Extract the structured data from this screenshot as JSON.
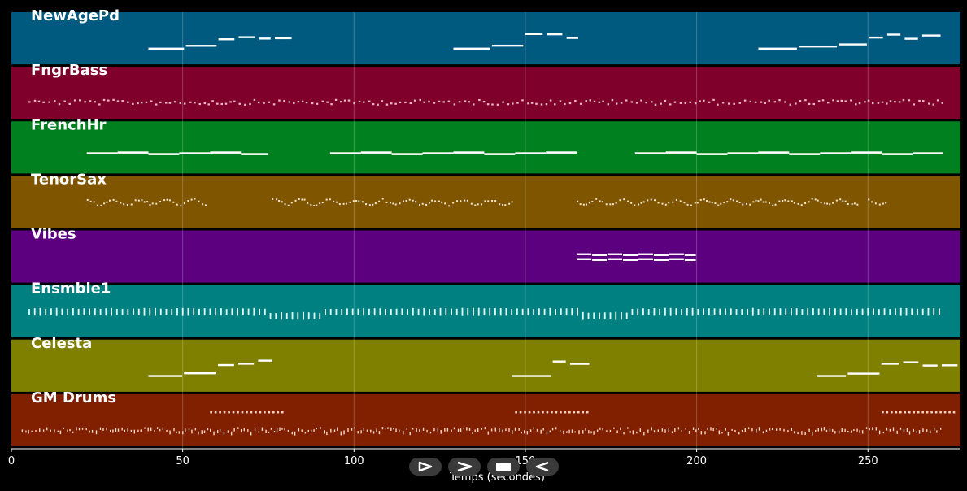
{
  "chart_data": {
    "type": "piano-roll",
    "xlabel": "Temps (secondes)",
    "xlim": [
      0,
      277
    ],
    "x_ticks": [
      0,
      50,
      100,
      150,
      200,
      250
    ],
    "grid": true,
    "tracks": [
      {
        "name": "NewAgePd",
        "color": "#005a80",
        "pattern": "phrases",
        "phrases": [
          [
            40,
            77
          ],
          [
            129,
            166
          ],
          [
            218,
            272
          ]
        ]
      },
      {
        "name": "FngrBass",
        "color": "#80002c",
        "pattern": "dense-dots",
        "start": 5,
        "end": 272
      },
      {
        "name": "FrenchHr",
        "color": "#00801f",
        "pattern": "long-notes",
        "segments": [
          [
            22,
            75
          ],
          [
            93,
            165
          ],
          [
            182,
            272
          ]
        ]
      },
      {
        "name": "TenorSax",
        "color": "#805500",
        "pattern": "dots-segments",
        "segments": [
          [
            22,
            57
          ],
          [
            76,
            146
          ],
          [
            165,
            247
          ],
          [
            250,
            255
          ]
        ]
      },
      {
        "name": "Vibes",
        "color": "#5c0080",
        "pattern": "chords",
        "segments": [
          [
            165,
            200
          ]
        ]
      },
      {
        "name": "Ensmble1",
        "color": "#008080",
        "pattern": "vertical-ticks",
        "start": 5,
        "end": 272
      },
      {
        "name": "Celesta",
        "color": "#808000",
        "pattern": "phrases",
        "phrases": [
          [
            40,
            77
          ],
          [
            146,
            166
          ],
          [
            235,
            272
          ]
        ]
      },
      {
        "name": "GM Drums",
        "color": "#802000",
        "pattern": "drums",
        "start": 3,
        "end": 272,
        "fills": [
          [
            58,
            79
          ],
          [
            147,
            168
          ],
          [
            254,
            275
          ]
        ]
      }
    ]
  },
  "controls": [
    {
      "name": "play-button",
      "icon": "play-icon"
    },
    {
      "name": "forward-button",
      "icon": "forward-icon"
    },
    {
      "name": "stop-button",
      "icon": "stop-icon"
    },
    {
      "name": "back-button",
      "icon": "back-icon"
    }
  ]
}
